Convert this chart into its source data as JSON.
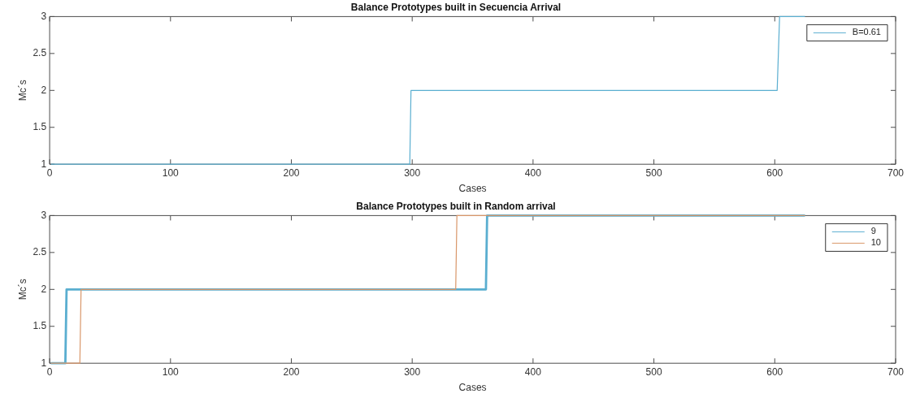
{
  "chart_data": [
    {
      "type": "line",
      "title": "Balance Prototypes built in Secuencia Arrival",
      "xlabel": "Cases",
      "ylabel": "Mc´s",
      "xlim": [
        0,
        700
      ],
      "xticks": [
        0,
        100,
        200,
        300,
        400,
        500,
        600,
        700
      ],
      "ylim": [
        1,
        3
      ],
      "yticks": [
        1,
        1.5,
        2,
        2.5,
        3
      ],
      "grid": false,
      "legend": "top right",
      "marker": "none",
      "line_style": "solid",
      "series": [
        {
          "name": "B=0.61",
          "color": "#5aaed0",
          "x": [
            1,
            298,
            299,
            602,
            604,
            625
          ],
          "values": [
            1,
            1,
            2,
            2,
            3,
            3
          ]
        }
      ]
    },
    {
      "type": "line",
      "title": "Balance Prototypes built in Random arrival",
      "xlabel": "Cases",
      "ylabel": "Mc´s",
      "xlim": [
        0,
        700
      ],
      "xticks": [
        0,
        100,
        200,
        300,
        400,
        500,
        600,
        700
      ],
      "ylim": [
        1,
        3
      ],
      "yticks": [
        1,
        1.5,
        2,
        2.5,
        3
      ],
      "grid": false,
      "legend": "top right",
      "marker": "none",
      "line_style": "solid",
      "series": [
        {
          "name": "9",
          "color": "#5aaed0",
          "x": [
            1,
            13,
            14,
            361,
            362,
            625
          ],
          "values": [
            1,
            1,
            2,
            2,
            3,
            3
          ]
        },
        {
          "name": "10",
          "color": "#d9976a",
          "x": [
            1,
            25,
            26,
            336,
            337,
            625
          ],
          "values": [
            1,
            1,
            2,
            2,
            3,
            3
          ]
        }
      ]
    }
  ]
}
